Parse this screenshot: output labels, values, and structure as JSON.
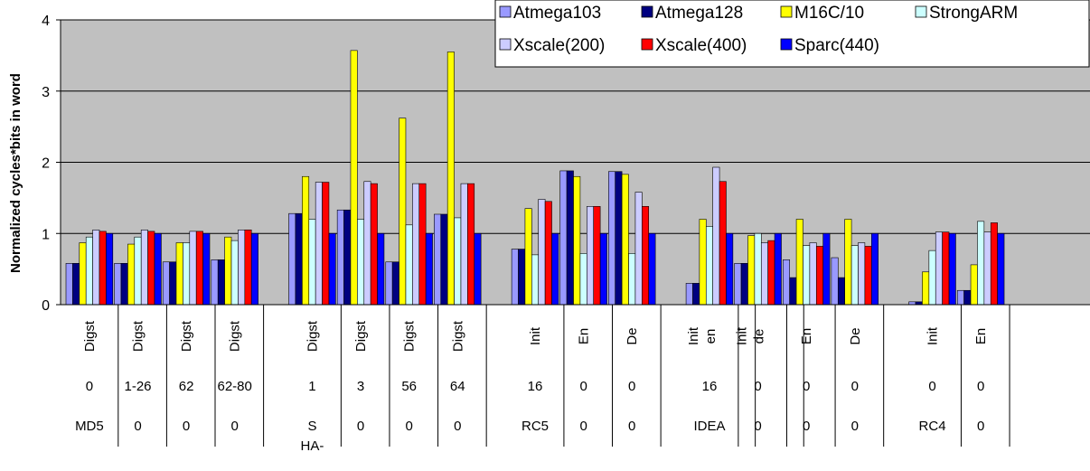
{
  "chart_data": {
    "type": "bar",
    "ylabel": "Normalized cycles*bits in word",
    "ylim": [
      0,
      4
    ],
    "yticks": [
      "0",
      "1",
      "2",
      "3",
      "4"
    ],
    "grid": true,
    "legend_position": "top-right",
    "series": [
      {
        "name": "Atmega103",
        "color": "#9999ff"
      },
      {
        "name": "Atmega128",
        "color": "#000080"
      },
      {
        "name": "M16C/10",
        "color": "#ffff00"
      },
      {
        "name": "StrongARM",
        "color": "#ccffff"
      },
      {
        "name": "Xscale(200)",
        "color": "#ccccff"
      },
      {
        "name": "Xscale(400)",
        "color": "#ff0000"
      },
      {
        "name": "Sparc(440)",
        "color": "#0000ff"
      }
    ],
    "groups": [
      {
        "label1": "Digst",
        "label2": "0",
        "label3": "MD5",
        "values": [
          0.58,
          0.58,
          0.87,
          0.95,
          1.05,
          1.03,
          1.0
        ]
      },
      {
        "label1": "Digst",
        "label2": "1-26",
        "label3": "0",
        "values": [
          0.58,
          0.58,
          0.85,
          0.95,
          1.05,
          1.03,
          1.0
        ]
      },
      {
        "label1": "Digst",
        "label2": "62",
        "label3": "0",
        "values": [
          0.6,
          0.6,
          0.87,
          0.87,
          1.03,
          1.03,
          1.0
        ]
      },
      {
        "label1": "Digst",
        "label2": "62-80",
        "label3": "0",
        "values": [
          0.63,
          0.63,
          0.95,
          0.9,
          1.05,
          1.05,
          1.0
        ]
      },
      {
        "label1": "Digst",
        "label2": "1",
        "label3": "S HA-",
        "values": [
          1.28,
          1.28,
          1.8,
          1.2,
          1.72,
          1.72,
          1.0
        ]
      },
      {
        "label1": "Digst",
        "label2": "3",
        "label3": "0",
        "values": [
          1.33,
          1.33,
          3.57,
          1.2,
          1.73,
          1.7,
          1.0
        ]
      },
      {
        "label1": "Digst",
        "label2": "56",
        "label3": "0",
        "values": [
          0.6,
          0.6,
          2.62,
          1.12,
          1.7,
          1.7,
          1.0
        ]
      },
      {
        "label1": "Digst",
        "label2": "64",
        "label3": "0",
        "values": [
          1.27,
          1.27,
          3.55,
          1.22,
          1.7,
          1.7,
          1.0
        ]
      },
      {
        "label1": "Init",
        "label2": "16",
        "label3": "RC5",
        "values": [
          0.78,
          0.78,
          1.35,
          0.7,
          1.48,
          1.45,
          1.0
        ]
      },
      {
        "label1": "En",
        "label2": "0",
        "label3": "0",
        "values": [
          1.88,
          1.88,
          1.8,
          0.72,
          1.38,
          1.38,
          1.0
        ]
      },
      {
        "label1": "De",
        "label2": "0",
        "label3": "0",
        "values": [
          1.87,
          1.87,
          1.83,
          0.72,
          1.58,
          1.38,
          1.0
        ]
      },
      {
        "label1": "Init",
        "label2": "16",
        "label3": "IDEA",
        "values": [
          0.3,
          0.3,
          1.2,
          1.1,
          1.93,
          1.73,
          1.0
        ]
      },
      {
        "label1": "en",
        "label2": "",
        "label3": "",
        "values": [
          0.3,
          0.3,
          1.2,
          1.1,
          1.93,
          1.73,
          1.0
        ]
      },
      {
        "label1": "Init",
        "label2": "0",
        "label3": "0",
        "values": [
          0.58,
          0.58,
          0.97,
          1.0,
          0.87,
          0.9,
          1.0
        ]
      },
      {
        "label1": "de",
        "label2": "",
        "label3": "",
        "values": [
          0.58,
          0.58,
          0.97,
          1.0,
          0.87,
          0.9,
          1.0
        ]
      },
      {
        "label1": "En",
        "label2": "0",
        "label3": "0",
        "values": [
          0.63,
          0.38,
          1.2,
          0.83,
          0.87,
          0.82,
          1.0
        ]
      },
      {
        "label1": "De",
        "label2": "0",
        "label3": "0",
        "values": [
          0.66,
          0.38,
          1.2,
          0.83,
          0.87,
          0.82,
          1.0
        ]
      },
      {
        "label1": "Init",
        "label2": "0",
        "label3": "RC4",
        "values": [
          0.04,
          0.04,
          0.46,
          0.76,
          1.02,
          1.02,
          1.0
        ]
      },
      {
        "label1": "En",
        "label2": "0",
        "label3": "0",
        "values": [
          0.2,
          0.2,
          0.56,
          1.17,
          1.02,
          1.15,
          1.0
        ]
      }
    ]
  }
}
